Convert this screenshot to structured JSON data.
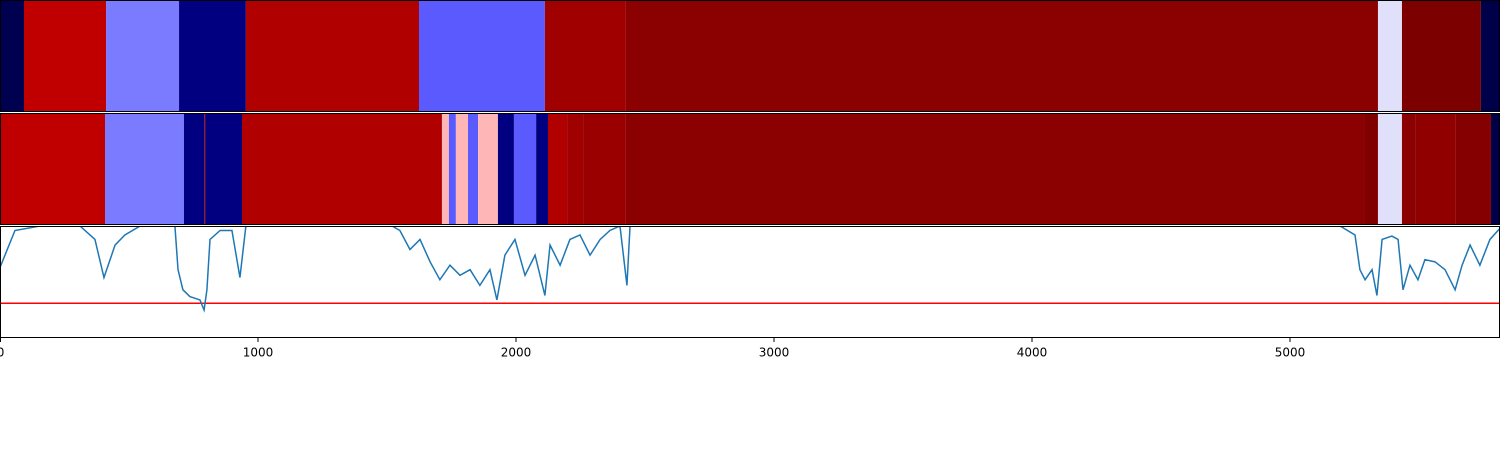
{
  "chart_data": [
    {
      "type": "segments",
      "xlim": [
        0,
        5814
      ],
      "segments": [
        {
          "start": 0,
          "end": 93,
          "color": "#000050"
        },
        {
          "start": 93,
          "end": 411,
          "color": "#c00000"
        },
        {
          "start": 411,
          "end": 694,
          "color": "#7b7bff"
        },
        {
          "start": 694,
          "end": 953,
          "color": "#000080"
        },
        {
          "start": 953,
          "end": 1624,
          "color": "#b00000"
        },
        {
          "start": 1624,
          "end": 2112,
          "color": "#5a5aff"
        },
        {
          "start": 2112,
          "end": 2426,
          "color": "#a00000"
        },
        {
          "start": 2426,
          "end": 5341,
          "color": "#8b0000"
        },
        {
          "start": 5341,
          "end": 5434,
          "color": "#e0e0fa"
        },
        {
          "start": 5434,
          "end": 5740,
          "color": "#7d0000"
        },
        {
          "start": 5740,
          "end": 5814,
          "color": "#00004a"
        }
      ]
    },
    {
      "type": "segments",
      "xlim": [
        0,
        5814
      ],
      "segments": [
        {
          "start": 0,
          "end": 407,
          "color": "#c00000"
        },
        {
          "start": 407,
          "end": 713,
          "color": "#7b7bff"
        },
        {
          "start": 713,
          "end": 791,
          "color": "#000080"
        },
        {
          "start": 791,
          "end": 795,
          "color": "#b00000"
        },
        {
          "start": 795,
          "end": 938,
          "color": "#000080"
        },
        {
          "start": 938,
          "end": 1713,
          "color": "#b00000"
        },
        {
          "start": 1713,
          "end": 1740,
          "color": "#ffb6b6"
        },
        {
          "start": 1740,
          "end": 1767,
          "color": "#5a5aff"
        },
        {
          "start": 1767,
          "end": 1814,
          "color": "#ffb6b6"
        },
        {
          "start": 1814,
          "end": 1853,
          "color": "#5a5aff"
        },
        {
          "start": 1853,
          "end": 1930,
          "color": "#ffb6b6"
        },
        {
          "start": 1930,
          "end": 1992,
          "color": "#000080"
        },
        {
          "start": 1992,
          "end": 2078,
          "color": "#5a5aff"
        },
        {
          "start": 2078,
          "end": 2124,
          "color": "#000080"
        },
        {
          "start": 2124,
          "end": 2198,
          "color": "#b00000"
        },
        {
          "start": 2198,
          "end": 2260,
          "color": "#a00000"
        },
        {
          "start": 2260,
          "end": 2426,
          "color": "#9a0000"
        },
        {
          "start": 2426,
          "end": 5287,
          "color": "#8b0000"
        },
        {
          "start": 5287,
          "end": 5341,
          "color": "#800000"
        },
        {
          "start": 5341,
          "end": 5434,
          "color": "#e0e0fa"
        },
        {
          "start": 5434,
          "end": 5488,
          "color": "#8b0000"
        },
        {
          "start": 5488,
          "end": 5643,
          "color": "#900000"
        },
        {
          "start": 5643,
          "end": 5779,
          "color": "#850000"
        },
        {
          "start": 5779,
          "end": 5814,
          "color": "#00004a"
        }
      ]
    },
    {
      "type": "line",
      "xlim": [
        0,
        5814
      ],
      "ylim": [
        0,
        1
      ],
      "xticks": [
        0,
        1000,
        2000,
        3000,
        4000,
        5000
      ],
      "color": "#1f77b4",
      "hline": {
        "value": 0.31,
        "color": "#ff0000"
      },
      "x": [
        0,
        58,
        155,
        310,
        368,
        403,
        446,
        484,
        543,
        678,
        690,
        709,
        736,
        775,
        791,
        802,
        814,
        853,
        899,
        930,
        953,
        1520,
        1550,
        1589,
        1628,
        1667,
        1705,
        1744,
        1783,
        1822,
        1860,
        1899,
        1926,
        1957,
        1996,
        2035,
        2074,
        2112,
        2132,
        2171,
        2209,
        2248,
        2287,
        2326,
        2364,
        2403,
        2430,
        2442,
        5194,
        5252,
        5271,
        5291,
        5318,
        5337,
        5357,
        5395,
        5419,
        5438,
        5465,
        5496,
        5523,
        5562,
        5601,
        5640,
        5667,
        5698,
        5736,
        5775,
        5814
      ],
      "values": [
        0.63,
        0.96,
        1.0,
        1.0,
        0.88,
        0.54,
        0.83,
        0.92,
        1.0,
        1.0,
        0.61,
        0.43,
        0.37,
        0.34,
        0.25,
        0.43,
        0.88,
        0.96,
        0.96,
        0.54,
        1.0,
        1.0,
        0.96,
        0.79,
        0.88,
        0.68,
        0.52,
        0.65,
        0.56,
        0.61,
        0.47,
        0.61,
        0.34,
        0.74,
        0.88,
        0.56,
        0.74,
        0.38,
        0.83,
        0.65,
        0.88,
        0.92,
        0.74,
        0.88,
        0.96,
        1.0,
        0.47,
        1.0,
        1.0,
        0.92,
        0.61,
        0.52,
        0.61,
        0.38,
        0.88,
        0.91,
        0.88,
        0.43,
        0.65,
        0.52,
        0.7,
        0.68,
        0.61,
        0.43,
        0.65,
        0.83,
        0.65,
        0.88,
        0.98
      ]
    }
  ]
}
